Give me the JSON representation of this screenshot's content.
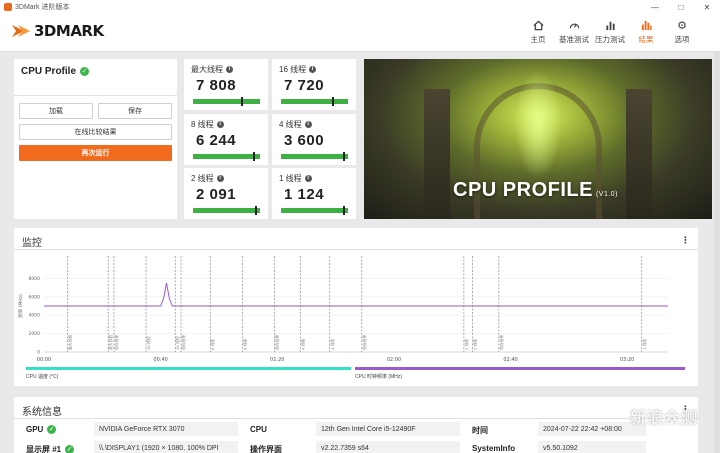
{
  "window": {
    "title": "3DMark 进阶版本"
  },
  "header": {
    "logo_text": "3DMARK",
    "nav": [
      {
        "label": "主页",
        "icon": "home-icon"
      },
      {
        "label": "基准测试",
        "icon": "gauge-icon"
      },
      {
        "label": "压力测试",
        "icon": "bar-chart-icon"
      },
      {
        "label": "结果",
        "icon": "results-icon",
        "active": true
      },
      {
        "label": "选项",
        "icon": "gear-icon"
      }
    ]
  },
  "profile": {
    "title": "CPU Profile",
    "load_label": "加载",
    "save_label": "保存",
    "compare_label": "在线比较结果",
    "run_label": "再次运行"
  },
  "scores": [
    {
      "label": "最大线程",
      "value": "7 808",
      "marker": 0.72
    },
    {
      "label": "16 线程",
      "value": "7 720",
      "marker": 0.76
    },
    {
      "label": "8 线程",
      "value": "6 244",
      "marker": 0.9
    },
    {
      "label": "4 线程",
      "value": "3 600",
      "marker": 0.93
    },
    {
      "label": "2 线程",
      "value": "2 091",
      "marker": 0.93
    },
    {
      "label": "1 线程",
      "value": "1 124",
      "marker": 0.93
    }
  ],
  "banner": {
    "title": "CPU PROFILE",
    "version": "(V1.0)"
  },
  "monitor": {
    "title": "监控",
    "chart_data": {
      "type": "line",
      "x_ticks": [
        "00:00",
        "00:40",
        "01:20",
        "02:00",
        "02:40",
        "03:20"
      ],
      "y_ticks": [
        "8000",
        "6000",
        "4000",
        "2000",
        "0"
      ],
      "ylim": [
        0,
        10000
      ],
      "xlim": [
        0,
        214
      ],
      "ylabel": "频率 (MHz)",
      "series": [
        {
          "name": "CPU 时钟频率 (MHz)",
          "color": "#9b59c9",
          "x": [
            0,
            40,
            41,
            42,
            43,
            44,
            214
          ],
          "y": [
            5000,
            5000,
            5800,
            7500,
            5800,
            5000,
            5000
          ]
        }
      ],
      "markers": [
        {
          "x": 8,
          "label": "最大线程"
        },
        {
          "x": 22,
          "label": "最大线程"
        },
        {
          "x": 24,
          "label": "保存结果"
        },
        {
          "x": 35,
          "label": "16 线程"
        },
        {
          "x": 45,
          "label": "16 线程"
        },
        {
          "x": 47,
          "label": "保存结果"
        },
        {
          "x": 57,
          "label": "8 线程"
        },
        {
          "x": 68,
          "label": "8 线程"
        },
        {
          "x": 79,
          "label": "保存结果"
        },
        {
          "x": 88,
          "label": "4 线程"
        },
        {
          "x": 98,
          "label": "4 线程"
        },
        {
          "x": 109,
          "label": "保存结果"
        },
        {
          "x": 144,
          "label": "2 线程"
        },
        {
          "x": 147,
          "label": "2 线程"
        },
        {
          "x": 156,
          "label": "保存结果"
        },
        {
          "x": 205,
          "label": "1 线程"
        }
      ]
    },
    "legend": [
      {
        "label": "CPU 温度 (°C)",
        "color": "#35e0c0"
      },
      {
        "label": "CPU 时钟频率 (MHz)",
        "color": "#9b59c9"
      }
    ]
  },
  "sysinfo": {
    "title": "系统信息",
    "rows": [
      {
        "key": "GPU",
        "value": "NVIDIA GeForce RTX 3070",
        "check": true
      },
      {
        "key": "CPU",
        "value": "12th Gen Intel Core i5-12490F",
        "check": false
      },
      {
        "key": "时间",
        "value": "2024-07-22 22:42 +08:00",
        "check": false
      },
      {
        "key": "显示屏 #1",
        "value": "\\\\.\\DISPLAY1 (1920 × 1080, 100% DPI",
        "check": true
      },
      {
        "key": "操作界面",
        "value": "v2.22.7359 s64",
        "check": false
      },
      {
        "key": "SystemInfo",
        "value": "v5.50.1092",
        "check": false
      }
    ]
  },
  "watermark": "新浪众测"
}
